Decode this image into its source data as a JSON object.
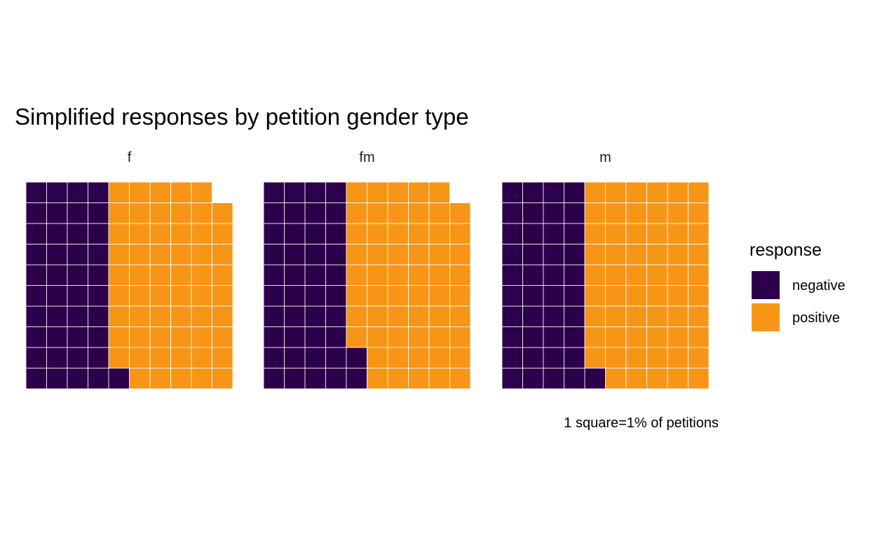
{
  "chart_data": {
    "type": "waffle",
    "title": "Simplified responses by petition gender type",
    "caption": "1 square=1% of petitions",
    "legend": {
      "title": "response",
      "position": "right",
      "items": [
        {
          "label": "negative",
          "color": "#2d004b"
        },
        {
          "label": "positive",
          "color": "#f79616"
        }
      ]
    },
    "grid": {
      "rows": 10,
      "cols": 10,
      "fill_order": "column-wise from bottom-left"
    },
    "categories": [
      "negative",
      "positive"
    ],
    "facets": [
      {
        "label": "f",
        "values": {
          "negative": 41,
          "positive": 58
        }
      },
      {
        "label": "fm",
        "values": {
          "negative": 42,
          "positive": 57
        }
      },
      {
        "label": "m",
        "values": {
          "negative": 41,
          "positive": 59
        }
      }
    ],
    "colors": {
      "negative": "#2d004b",
      "positive": "#f79616",
      "cell_border": "#ffffff"
    },
    "grid_lines": false
  }
}
